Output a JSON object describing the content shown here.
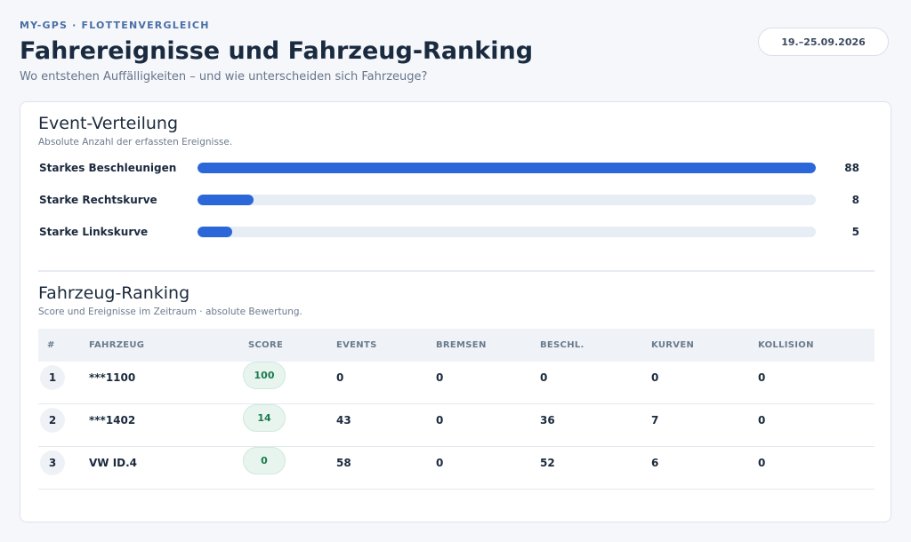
{
  "header": {
    "eyebrow": "MY-GPS · FLOTTENVERGLEICH",
    "title": "Fahrereignisse und Fahrzeug-Ranking",
    "subtitle": "Wo entstehen Auffälligkeiten – und wie unterscheiden sich Fahrzeuge?",
    "date_range": "19.–25.09.2026"
  },
  "events": {
    "title": "Event-Verteilung",
    "subtitle": "Absolute Anzahl der erfassten Ereignisse.",
    "max": 88,
    "bar_color": "#2b67d8",
    "items": [
      {
        "label": "Starkes Beschleunigen",
        "value": 88
      },
      {
        "label": "Starke Rechtskurve",
        "value": 8
      },
      {
        "label": "Starke Linkskurve",
        "value": 5
      }
    ]
  },
  "ranking": {
    "title": "Fahrzeug-Ranking",
    "subtitle": "Score und Ereignisse im Zeitraum · absolute Bewertung.",
    "columns": [
      "#",
      "FAHRZEUG",
      "SCORE",
      "EVENTS",
      "BREMSEN",
      "BESCHL.",
      "KURVEN",
      "KOLLISION"
    ],
    "rows": [
      {
        "rank": "1",
        "vehicle": "***1100",
        "score": "100",
        "events": "0",
        "brakes": "0",
        "accel": "0",
        "curves": "0",
        "collision": "0"
      },
      {
        "rank": "2",
        "vehicle": "***1402",
        "score": "14",
        "events": "43",
        "brakes": "0",
        "accel": "36",
        "curves": "7",
        "collision": "0"
      },
      {
        "rank": "3",
        "vehicle": "VW ID.4",
        "score": "0",
        "events": "58",
        "brakes": "0",
        "accel": "52",
        "curves": "6",
        "collision": "0"
      }
    ]
  }
}
